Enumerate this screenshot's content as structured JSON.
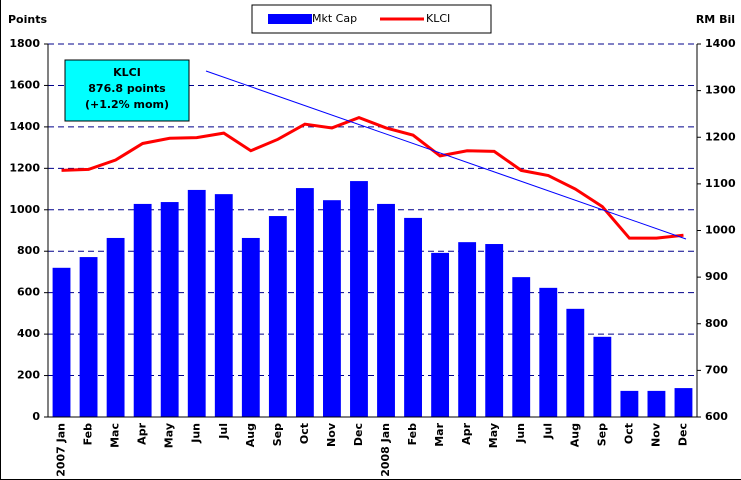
{
  "chart_data": {
    "type": "bar-line",
    "y_label": "Points",
    "y2_label": "RM Bil",
    "categories": [
      "2007 Jan",
      "Feb",
      "Mac",
      "Apr",
      "May",
      "Jun",
      "Jul",
      "Aug",
      "Sep",
      "Oct",
      "Nov",
      "Dec",
      "2008 Jan",
      "Feb",
      "Mar",
      "Apr",
      "May",
      "Jun",
      "Jul",
      "Aug",
      "Sep",
      "Oct",
      "Nov",
      "Dec"
    ],
    "series": [
      {
        "name": "Mkt Cap",
        "type": "bar",
        "axis": "y2",
        "color": "#0000ff",
        "values": [
          920,
          943,
          984,
          1057,
          1061,
          1087,
          1078,
          984,
          1031,
          1091,
          1065,
          1106,
          1057,
          1027,
          952,
          975,
          971,
          900,
          877,
          832,
          772,
          656,
          656,
          662
        ]
      },
      {
        "name": "KLCI",
        "type": "line",
        "axis": "y",
        "color": "#ff0000",
        "values": [
          1190,
          1195,
          1240,
          1320,
          1345,
          1348,
          1370,
          1285,
          1340,
          1413,
          1395,
          1445,
          1395,
          1360,
          1260,
          1285,
          1282,
          1190,
          1165,
          1100,
          1015,
          863,
          863,
          877
        ]
      }
    ],
    "ylim": [
      0,
      1800
    ],
    "yticks": [
      0,
      200,
      400,
      600,
      800,
      1000,
      1200,
      1400,
      1600,
      1800
    ],
    "y2lim": [
      600,
      1400
    ],
    "y2ticks": [
      600,
      700,
      800,
      900,
      1000,
      1100,
      1200,
      1300,
      1400
    ],
    "grid": true,
    "legend": "top",
    "annotation": [
      "KLCI",
      "876.8 points",
      "(+1.2% mom)"
    ]
  }
}
